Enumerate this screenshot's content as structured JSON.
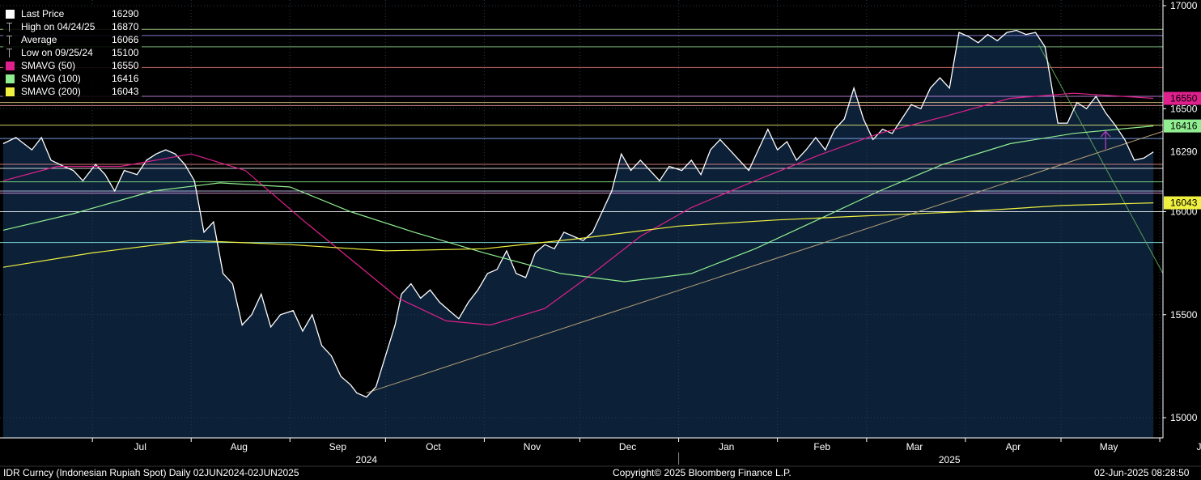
{
  "footer": {
    "ticker": "IDR Curncy (Indonesian Rupiah Spot)  Daily 02JUN2024-02JUN2025",
    "copyright": "Copyright© 2025 Bloomberg Finance L.P.",
    "timestamp": "02-Jun-2025 08:28:50"
  },
  "legend": [
    {
      "label": "Last Price",
      "value": "16290",
      "icon": "square",
      "color": "#ffffff"
    },
    {
      "label": "High on 04/24/25",
      "value": "16870",
      "icon": "tick",
      "color": "#aaaaaa"
    },
    {
      "label": "Average",
      "value": "16066",
      "icon": "tick",
      "color": "#aaaaaa"
    },
    {
      "label": "Low on 09/25/24",
      "value": "15100",
      "icon": "tick",
      "color": "#aaaaaa"
    },
    {
      "label": "SMAVG (50)",
      "value": "16550",
      "icon": "square",
      "color": "#e0208c"
    },
    {
      "label": "SMAVG (100)",
      "value": "16416",
      "icon": "square",
      "color": "#90ee90"
    },
    {
      "label": "SMAVG (200)",
      "value": "16043",
      "icon": "square",
      "color": "#f0f040"
    }
  ],
  "chart_data": {
    "type": "line",
    "x_range": [
      "2024-06-02",
      "2025-06-02"
    ],
    "ylim": [
      14950,
      17000
    ],
    "y_ticks": [
      "15000",
      "15500",
      "16000",
      "16500",
      "17000"
    ],
    "x_ticks": [
      "Jul",
      "Aug",
      "Sep",
      "Oct",
      "Nov",
      "Dec",
      "Jan",
      "Feb",
      "Mar",
      "Apr",
      "May",
      "Jun"
    ],
    "year_labels": [
      "2024",
      "2025"
    ],
    "last_price_label": "16290",
    "sma_labels": [
      {
        "text": "16550",
        "value": 16550,
        "color": "#e0208c"
      },
      {
        "text": "16416",
        "value": 16416,
        "color": "#90ee90"
      },
      {
        "text": "16043",
        "value": 16043,
        "color": "#f0f040"
      }
    ],
    "horizontal_levels": [
      {
        "value": 16885,
        "color": "#b4e68c"
      },
      {
        "value": 16855,
        "color": "#9a8cf0"
      },
      {
        "value": 16800,
        "color": "#8cd28c"
      },
      {
        "value": 16700,
        "color": "#f07878"
      },
      {
        "value": 16560,
        "color": "#d28cf0"
      },
      {
        "value": 16530,
        "color": "#f0d28c"
      },
      {
        "value": 16515,
        "color": "#f0a0a0"
      },
      {
        "value": 16420,
        "color": "#f0f078"
      },
      {
        "value": 16355,
        "color": "#8cb4ff"
      },
      {
        "value": 16230,
        "color": "#f08c8c"
      },
      {
        "value": 16210,
        "color": "#f0f0f0"
      },
      {
        "value": 16145,
        "color": "#8cf08c"
      },
      {
        "value": 16100,
        "color": "#c8c8f0"
      },
      {
        "value": 16090,
        "color": "#f0a0f0"
      },
      {
        "value": 16000,
        "color": "#ffffff"
      },
      {
        "value": 15850,
        "color": "#8cf0f0"
      }
    ],
    "series": [
      {
        "name": "Last Price",
        "color": "#ffffff",
        "points": [
          [
            "2024-06-03",
            16330
          ],
          [
            "2024-06-07",
            16360
          ],
          [
            "2024-06-12",
            16300
          ],
          [
            "2024-06-15",
            16360
          ],
          [
            "2024-06-18",
            16250
          ],
          [
            "2024-06-22",
            16220
          ],
          [
            "2024-06-25",
            16200
          ],
          [
            "2024-06-28",
            16150
          ],
          [
            "2024-07-02",
            16230
          ],
          [
            "2024-07-05",
            16180
          ],
          [
            "2024-07-08",
            16100
          ],
          [
            "2024-07-11",
            16200
          ],
          [
            "2024-07-15",
            16180
          ],
          [
            "2024-07-18",
            16250
          ],
          [
            "2024-07-21",
            16280
          ],
          [
            "2024-07-24",
            16300
          ],
          [
            "2024-07-27",
            16280
          ],
          [
            "2024-07-30",
            16230
          ],
          [
            "2024-08-02",
            16150
          ],
          [
            "2024-08-05",
            15900
          ],
          [
            "2024-08-08",
            15950
          ],
          [
            "2024-08-11",
            15700
          ],
          [
            "2024-08-14",
            15650
          ],
          [
            "2024-08-17",
            15450
          ],
          [
            "2024-08-20",
            15500
          ],
          [
            "2024-08-23",
            15600
          ],
          [
            "2024-08-26",
            15440
          ],
          [
            "2024-08-29",
            15500
          ],
          [
            "2024-09-02",
            15520
          ],
          [
            "2024-09-05",
            15420
          ],
          [
            "2024-09-08",
            15500
          ],
          [
            "2024-09-11",
            15350
          ],
          [
            "2024-09-14",
            15300
          ],
          [
            "2024-09-17",
            15200
          ],
          [
            "2024-09-20",
            15160
          ],
          [
            "2024-09-22",
            15120
          ],
          [
            "2024-09-25",
            15100
          ],
          [
            "2024-09-28",
            15150
          ],
          [
            "2024-10-01",
            15300
          ],
          [
            "2024-10-04",
            15450
          ],
          [
            "2024-10-06",
            15600
          ],
          [
            "2024-10-09",
            15650
          ],
          [
            "2024-10-12",
            15580
          ],
          [
            "2024-10-15",
            15620
          ],
          [
            "2024-10-18",
            15560
          ],
          [
            "2024-10-21",
            15520
          ],
          [
            "2024-10-24",
            15480
          ],
          [
            "2024-10-27",
            15560
          ],
          [
            "2024-10-30",
            15620
          ],
          [
            "2024-11-02",
            15700
          ],
          [
            "2024-11-05",
            15720
          ],
          [
            "2024-11-08",
            15810
          ],
          [
            "2024-11-11",
            15700
          ],
          [
            "2024-11-14",
            15680
          ],
          [
            "2024-11-17",
            15800
          ],
          [
            "2024-11-20",
            15840
          ],
          [
            "2024-11-23",
            15820
          ],
          [
            "2024-11-26",
            15900
          ],
          [
            "2024-11-29",
            15880
          ],
          [
            "2024-12-02",
            15860
          ],
          [
            "2024-12-05",
            15900
          ],
          [
            "2024-12-08",
            16000
          ],
          [
            "2024-12-11",
            16100
          ],
          [
            "2024-12-14",
            16280
          ],
          [
            "2024-12-17",
            16200
          ],
          [
            "2024-12-20",
            16250
          ],
          [
            "2024-12-23",
            16200
          ],
          [
            "2024-12-26",
            16150
          ],
          [
            "2024-12-29",
            16220
          ],
          [
            "2025-01-02",
            16200
          ],
          [
            "2025-01-05",
            16250
          ],
          [
            "2025-01-08",
            16180
          ],
          [
            "2025-01-11",
            16300
          ],
          [
            "2025-01-14",
            16350
          ],
          [
            "2025-01-17",
            16300
          ],
          [
            "2025-01-20",
            16250
          ],
          [
            "2025-01-23",
            16200
          ],
          [
            "2025-01-26",
            16300
          ],
          [
            "2025-01-29",
            16400
          ],
          [
            "2025-02-01",
            16300
          ],
          [
            "2025-02-04",
            16340
          ],
          [
            "2025-02-07",
            16250
          ],
          [
            "2025-02-10",
            16300
          ],
          [
            "2025-02-13",
            16360
          ],
          [
            "2025-02-16",
            16300
          ],
          [
            "2025-02-19",
            16400
          ],
          [
            "2025-02-22",
            16450
          ],
          [
            "2025-02-25",
            16600
          ],
          [
            "2025-02-28",
            16450
          ],
          [
            "2025-03-03",
            16350
          ],
          [
            "2025-03-06",
            16400
          ],
          [
            "2025-03-09",
            16380
          ],
          [
            "2025-03-12",
            16450
          ],
          [
            "2025-03-15",
            16520
          ],
          [
            "2025-03-18",
            16500
          ],
          [
            "2025-03-21",
            16600
          ],
          [
            "2025-03-24",
            16650
          ],
          [
            "2025-03-27",
            16600
          ],
          [
            "2025-03-30",
            16870
          ],
          [
            "2025-04-02",
            16850
          ],
          [
            "2025-04-05",
            16820
          ],
          [
            "2025-04-08",
            16860
          ],
          [
            "2025-04-11",
            16830
          ],
          [
            "2025-04-14",
            16870
          ],
          [
            "2025-04-17",
            16880
          ],
          [
            "2025-04-20",
            16860
          ],
          [
            "2025-04-23",
            16870
          ],
          [
            "2025-04-26",
            16800
          ],
          [
            "2025-04-30",
            16430
          ],
          [
            "2025-05-03",
            16430
          ],
          [
            "2025-05-06",
            16530
          ],
          [
            "2025-05-09",
            16500
          ],
          [
            "2025-05-12",
            16560
          ],
          [
            "2025-05-15",
            16480
          ],
          [
            "2025-05-18",
            16420
          ],
          [
            "2025-05-21",
            16350
          ],
          [
            "2025-05-24",
            16250
          ],
          [
            "2025-05-27",
            16260
          ],
          [
            "2025-05-30",
            16290
          ]
        ]
      },
      {
        "name": "SMAVG (50)",
        "color": "#e0208c",
        "points": [
          [
            "2024-06-03",
            16150
          ],
          [
            "2024-06-20",
            16220
          ],
          [
            "2024-07-10",
            16220
          ],
          [
            "2024-08-01",
            16280
          ],
          [
            "2024-08-18",
            16200
          ],
          [
            "2024-09-05",
            15960
          ],
          [
            "2024-09-20",
            15770
          ],
          [
            "2024-10-05",
            15580
          ],
          [
            "2024-10-20",
            15470
          ],
          [
            "2024-11-03",
            15450
          ],
          [
            "2024-11-20",
            15530
          ],
          [
            "2024-12-05",
            15700
          ],
          [
            "2024-12-20",
            15880
          ],
          [
            "2025-01-05",
            16020
          ],
          [
            "2025-01-25",
            16150
          ],
          [
            "2025-02-15",
            16280
          ],
          [
            "2025-03-05",
            16380
          ],
          [
            "2025-03-25",
            16460
          ],
          [
            "2025-04-15",
            16550
          ],
          [
            "2025-05-05",
            16575
          ],
          [
            "2025-05-30",
            16550
          ]
        ]
      },
      {
        "name": "SMAVG (100)",
        "color": "#90ee90",
        "points": [
          [
            "2024-06-03",
            15910
          ],
          [
            "2024-06-25",
            15990
          ],
          [
            "2024-07-20",
            16100
          ],
          [
            "2024-08-10",
            16140
          ],
          [
            "2024-09-01",
            16120
          ],
          [
            "2024-09-20",
            16000
          ],
          [
            "2024-10-10",
            15900
          ],
          [
            "2024-11-01",
            15800
          ],
          [
            "2024-11-25",
            15700
          ],
          [
            "2024-12-15",
            15660
          ],
          [
            "2025-01-05",
            15700
          ],
          [
            "2025-01-25",
            15820
          ],
          [
            "2025-02-15",
            15970
          ],
          [
            "2025-03-05",
            16100
          ],
          [
            "2025-03-25",
            16230
          ],
          [
            "2025-04-15",
            16330
          ],
          [
            "2025-05-05",
            16380
          ],
          [
            "2025-05-30",
            16416
          ]
        ]
      },
      {
        "name": "SMAVG (200)",
        "color": "#f0f040",
        "points": [
          [
            "2024-06-03",
            15730
          ],
          [
            "2024-07-01",
            15800
          ],
          [
            "2024-08-01",
            15860
          ],
          [
            "2024-09-01",
            15840
          ],
          [
            "2024-10-01",
            15810
          ],
          [
            "2024-11-01",
            15820
          ],
          [
            "2024-12-01",
            15870
          ],
          [
            "2025-01-01",
            15930
          ],
          [
            "2025-02-01",
            15960
          ],
          [
            "2025-03-01",
            15980
          ],
          [
            "2025-04-01",
            16000
          ],
          [
            "2025-05-01",
            16030
          ],
          [
            "2025-05-30",
            16043
          ]
        ]
      }
    ],
    "trendlines": [
      {
        "from": [
          "2024-09-25",
          15120
        ],
        "to": [
          "2025-06-02",
          16390
        ],
        "color": "#b4a078"
      },
      {
        "from": [
          "2025-04-24",
          16810
        ],
        "to": [
          "2025-06-02",
          15700
        ],
        "color": "#5aa05a"
      }
    ]
  }
}
